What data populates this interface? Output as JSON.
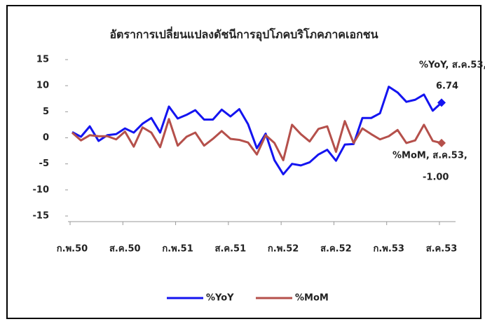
{
  "chart_data": {
    "type": "line",
    "title": "อัตราการเปลี่ยนแปลงดัชนีการอุปโภคบริโภคภาคเอกชน",
    "categories": [
      "ก.พ.50",
      null,
      null,
      null,
      null,
      null,
      "ส.ค.50",
      null,
      null,
      null,
      null,
      null,
      "ก.พ.51",
      null,
      null,
      null,
      null,
      null,
      "ส.ค.51",
      null,
      null,
      null,
      null,
      null,
      "ก.พ.52",
      null,
      null,
      null,
      null,
      null,
      "ส.ค.52",
      null,
      null,
      null,
      null,
      null,
      "ก.พ.53",
      null,
      null,
      null,
      null,
      null,
      "ส.ค.53"
    ],
    "series": [
      {
        "name": "%YoY",
        "color": "#1414f0",
        "end_label": "6.74",
        "values": [
          1.1,
          0.2,
          2.2,
          -0.6,
          0.5,
          0.7,
          1.8,
          1.0,
          2.7,
          3.8,
          1.0,
          6.0,
          3.7,
          4.4,
          5.3,
          3.5,
          3.5,
          5.4,
          4.1,
          5.5,
          2.6,
          -2.0,
          0.8,
          -4.3,
          -7.0,
          -5.0,
          -5.3,
          -4.7,
          -3.2,
          -2.3,
          -4.4,
          -1.3,
          -1.2,
          3.8,
          3.8,
          4.7,
          9.8,
          8.7,
          6.9,
          7.3,
          8.3,
          5.2,
          6.74
        ]
      },
      {
        "name": "%MoM",
        "color": "#b5504b",
        "end_label": "-1.00",
        "values": [
          1.0,
          -0.5,
          0.5,
          0.3,
          0.3,
          -0.3,
          1.2,
          -1.7,
          2.0,
          1.0,
          -1.8,
          3.6,
          -1.5,
          0.2,
          1.0,
          -1.5,
          -0.2,
          1.3,
          -0.2,
          -0.4,
          -0.9,
          -3.2,
          0.5,
          -1.0,
          -4.3,
          2.5,
          0.7,
          -0.7,
          1.7,
          2.2,
          -2.7,
          3.2,
          -1.0,
          1.8,
          0.7,
          -0.3,
          0.3,
          1.5,
          -1.0,
          -0.5,
          2.5,
          -0.6,
          -1.0
        ]
      }
    ],
    "annotations": [
      "%YoY, ส.ค.53,",
      "%MoM, ส.ค.53,"
    ],
    "ylim": [
      -15,
      15
    ],
    "yticks": [
      -15,
      -10,
      -5,
      0,
      5,
      10,
      15
    ],
    "legend": "bottom"
  }
}
